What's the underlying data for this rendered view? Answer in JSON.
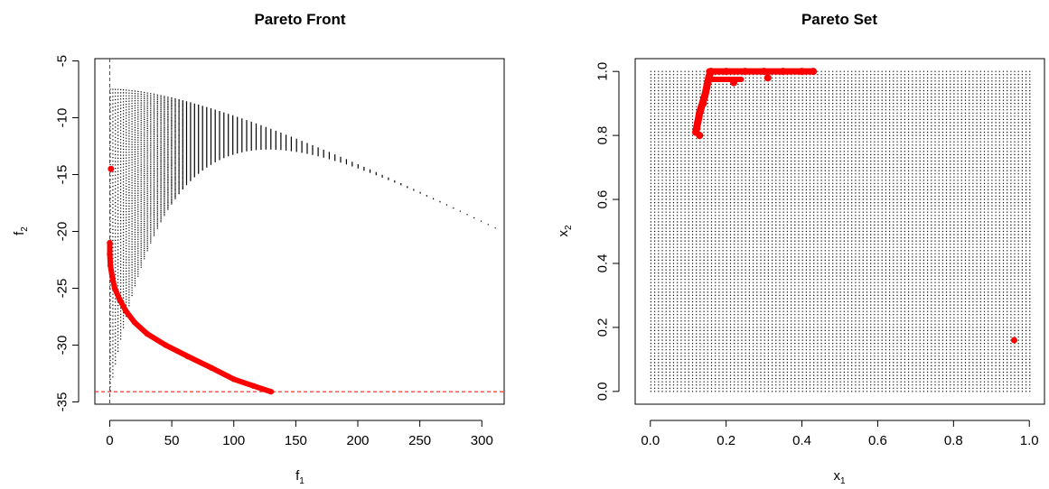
{
  "chart_data": [
    {
      "type": "scatter",
      "title": "Pareto Front",
      "xlabel": {
        "base": "f",
        "sub": "1"
      },
      "ylabel": {
        "base": "f",
        "sub": "2"
      },
      "xlim": [
        -12,
        318
      ],
      "ylim": [
        -35.2,
        -4.8
      ],
      "xticks": [
        0,
        50,
        100,
        150,
        200,
        250,
        300
      ],
      "yticks": [
        -35,
        -30,
        -25,
        -20,
        -15,
        -10,
        -5
      ],
      "series": [
        {
          "role": "feasible-objectives",
          "color": "#000000",
          "grid_steps": 80,
          "objective_model": {
            "f1": "160*(x1 + 0.94*x1^2)",
            "f2": "-7.5 - 26.5*x2*(1 - 0.92*x1)^4 - 12.2*x1^2"
          }
        },
        {
          "role": "pareto-front",
          "color": "#ff0000",
          "points": [
            [
              0,
              -21
            ],
            [
              0,
              -22
            ],
            [
              0.5,
              -23
            ],
            [
              2,
              -24
            ],
            [
              4,
              -25
            ],
            [
              8,
              -26
            ],
            [
              13,
              -27
            ],
            [
              20,
              -28
            ],
            [
              30,
              -29
            ],
            [
              45,
              -30
            ],
            [
              63,
              -31
            ],
            [
              82,
              -32
            ],
            [
              100,
              -33
            ],
            [
              116,
              -33.6
            ],
            [
              130,
              -34.1
            ]
          ],
          "isolated_points": [
            [
              1,
              -14.5
            ]
          ]
        }
      ],
      "reference_lines": [
        {
          "orientation": "vertical",
          "value": 0,
          "color": "#ff0000",
          "style": "dashed"
        },
        {
          "orientation": "horizontal",
          "value": -34.1,
          "color": "#ff0000",
          "style": "dashed"
        }
      ],
      "grid": false,
      "legend": "none"
    },
    {
      "type": "scatter",
      "title": "Pareto Set",
      "xlabel": {
        "base": "x",
        "sub": "1"
      },
      "ylabel": {
        "base": "x",
        "sub": "2"
      },
      "xlim": [
        -0.04,
        1.04
      ],
      "ylim": [
        -0.04,
        1.04
      ],
      "xticks": [
        0.0,
        0.2,
        0.4,
        0.6,
        0.8,
        1.0
      ],
      "yticks": [
        0.0,
        0.2,
        0.4,
        0.6,
        0.8,
        1.0
      ],
      "series": [
        {
          "role": "decision-grid",
          "color": "#000000",
          "grid_steps": 100,
          "range": [
            0,
            1
          ]
        },
        {
          "role": "pareto-set",
          "color": "#ff0000",
          "points": [
            [
              0.12,
              0.81
            ],
            [
              0.13,
              0.8
            ],
            [
              0.125,
              0.84
            ],
            [
              0.13,
              0.87
            ],
            [
              0.14,
              0.9
            ],
            [
              0.145,
              0.93
            ],
            [
              0.15,
              0.96
            ],
            [
              0.155,
              0.985
            ],
            [
              0.16,
              1.0
            ],
            [
              0.2,
              1.0
            ],
            [
              0.25,
              1.0
            ],
            [
              0.3,
              1.0
            ],
            [
              0.35,
              1.0
            ],
            [
              0.4,
              1.0
            ],
            [
              0.43,
              1.0
            ],
            [
              0.22,
              0.965
            ],
            [
              0.31,
              0.98
            ]
          ],
          "isolated_points": [
            [
              0.96,
              0.16
            ]
          ]
        }
      ],
      "grid": false,
      "legend": "none"
    }
  ]
}
